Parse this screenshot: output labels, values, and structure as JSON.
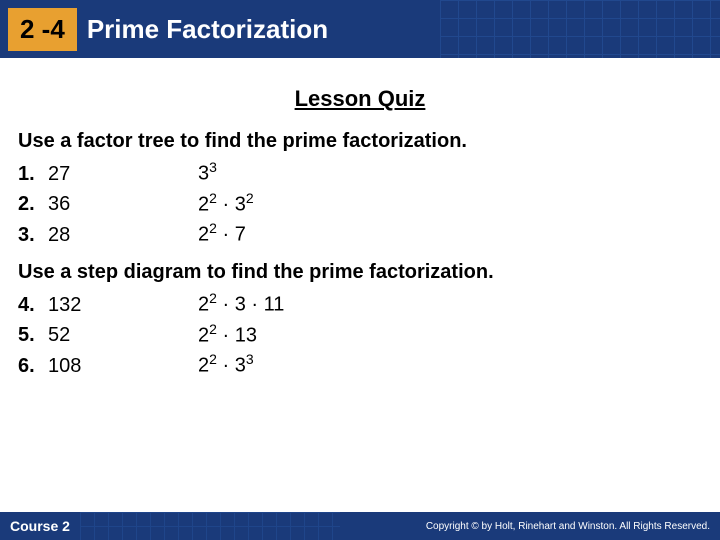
{
  "header": {
    "lesson_number": "2 -4",
    "lesson_title": "Prime Factorization",
    "bg_color": "#1a3a7a",
    "box_color": "#e8a030"
  },
  "quiz_title": "Lesson Quiz",
  "section_a": {
    "instruction": "Use a factor tree to find the prime factorization.",
    "items": [
      {
        "num": "1.",
        "val": "27",
        "ans_html": "3<sup>3</sup>"
      },
      {
        "num": "2.",
        "val": "36",
        "ans_html": "2<sup>2</sup> · 3<sup>2</sup>"
      },
      {
        "num": "3.",
        "val": "28",
        "ans_html": "2<sup>2</sup> · 7"
      }
    ]
  },
  "section_b": {
    "instruction": "Use a step diagram to find the prime factorization.",
    "items": [
      {
        "num": "4.",
        "val": "132",
        "ans_html": "2<sup>2</sup> · 3 · 11"
      },
      {
        "num": "5.",
        "val": "52",
        "ans_html": "2<sup>2</sup> · 13"
      },
      {
        "num": "6.",
        "val": "108",
        "ans_html": "2<sup>2</sup> · 3<sup>3</sup>"
      }
    ]
  },
  "footer": {
    "course": "Course 2",
    "copyright": "Copyright © by Holt, Rinehart and Winston. All Rights Reserved."
  }
}
